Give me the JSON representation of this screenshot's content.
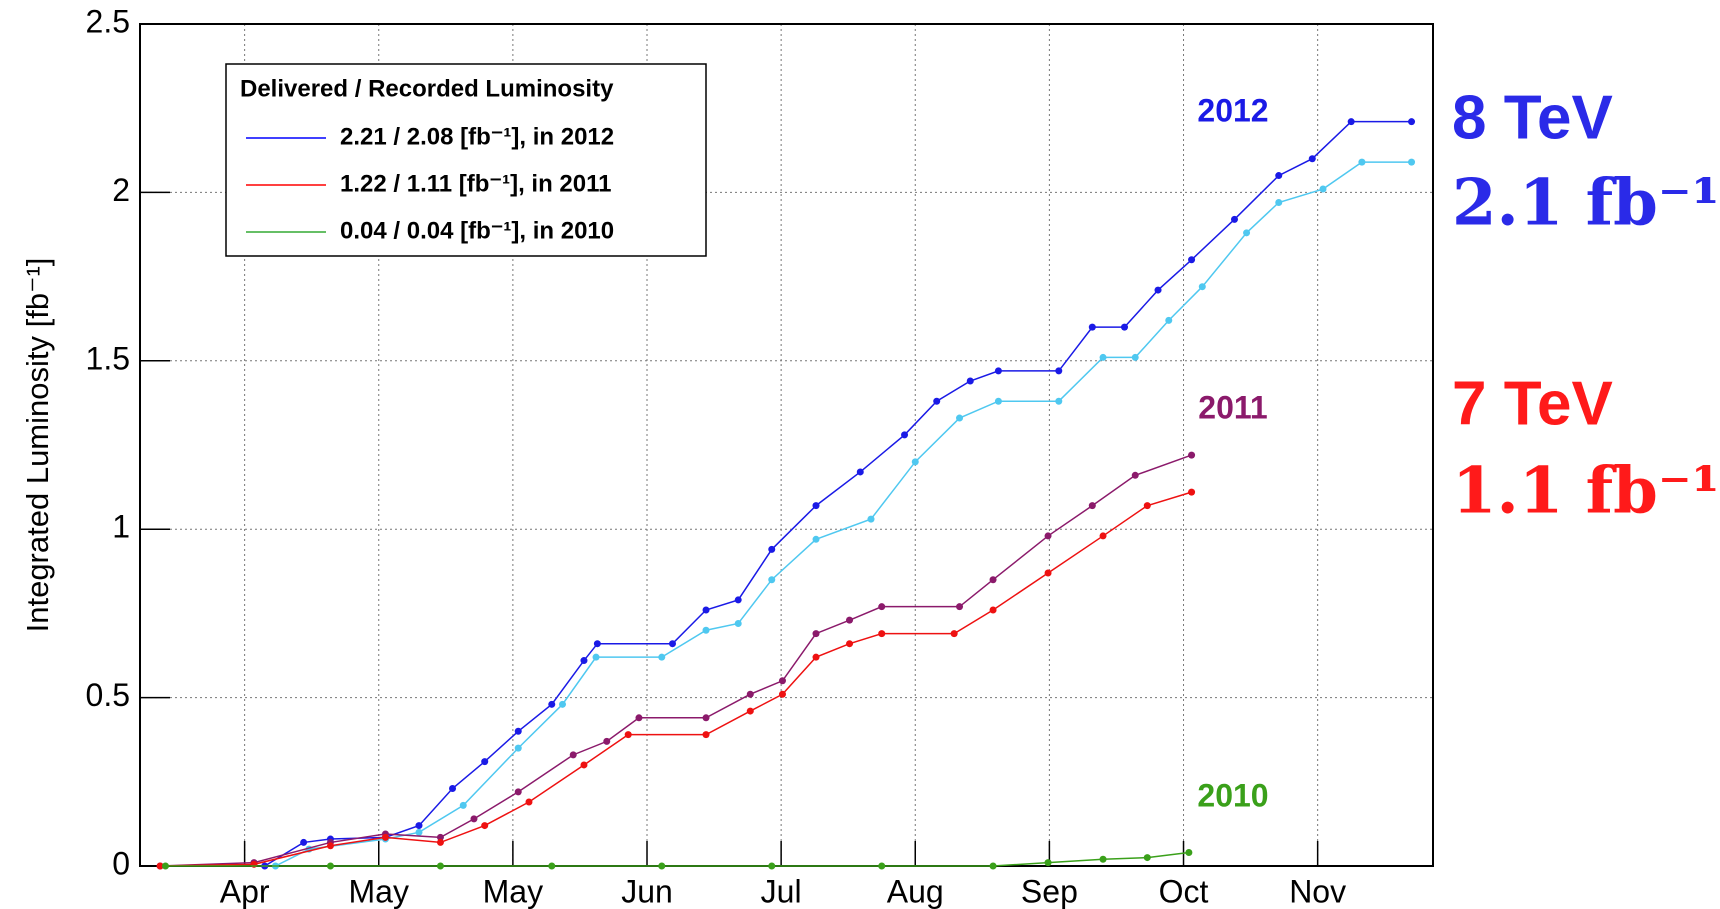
{
  "chart_data": {
    "type": "line",
    "ylabel": "Integrated Luminosity [fb⁻¹]",
    "xlim": [
      -0.78,
      8.86
    ],
    "xticks": [
      {
        "value": 0,
        "label": "Apr"
      },
      {
        "value": 1,
        "label": "May"
      },
      {
        "value": 2,
        "label": "May"
      },
      {
        "value": 3,
        "label": "Jun"
      },
      {
        "value": 4,
        "label": "Jul"
      },
      {
        "value": 5,
        "label": "Aug"
      },
      {
        "value": 6,
        "label": "Sep"
      },
      {
        "value": 7,
        "label": "Oct"
      },
      {
        "value": 8,
        "label": "Nov"
      }
    ],
    "ylim": [
      0,
      2.5
    ],
    "yticks": [
      0,
      0.5,
      1,
      1.5,
      2,
      2.5
    ],
    "grid": true,
    "legend": {
      "title": "Delivered / Recorded Luminosity",
      "position": "upper left",
      "entries": [
        {
          "label": "2.21 / 2.08 [fb⁻¹], in 2012",
          "color": "#0000ff"
        },
        {
          "label": "1.22 / 1.11 [fb⁻¹], in 2011",
          "color": "#ff0000"
        },
        {
          "label": "0.04 / 0.04 [fb⁻¹], in 2010",
          "color": "#33aa33"
        }
      ]
    },
    "series": [
      {
        "color": "#1a1ae6",
        "x": [
          0.15,
          0.44,
          0.64,
          1.05,
          1.3,
          1.55,
          1.79,
          2.04,
          2.29,
          2.53,
          2.63,
          3.19,
          3.44,
          3.68,
          3.93,
          4.26,
          4.59,
          4.92,
          5.16,
          5.41,
          5.62,
          6.07,
          6.32,
          6.56,
          6.81,
          7.06,
          7.38,
          7.71,
          7.96,
          8.25,
          8.7
        ],
        "values": [
          0,
          0.07,
          0.08,
          0.085,
          0.12,
          0.23,
          0.31,
          0.4,
          0.48,
          0.61,
          0.66,
          0.66,
          0.76,
          0.79,
          0.94,
          1.07,
          1.17,
          1.28,
          1.38,
          1.44,
          1.47,
          1.47,
          1.6,
          1.6,
          1.71,
          1.8,
          1.92,
          2.05,
          2.1,
          2.21,
          2.21
        ]
      },
      {
        "color": "#4fc8f0",
        "x": [
          0.23,
          0.48,
          1.05,
          1.3,
          1.63,
          2.04,
          2.37,
          2.62,
          3.11,
          3.44,
          3.68,
          3.93,
          4.26,
          4.67,
          5.0,
          5.33,
          5.62,
          6.07,
          6.4,
          6.64,
          6.89,
          7.14,
          7.47,
          7.71,
          8.04,
          8.33,
          8.7
        ],
        "values": [
          0,
          0.05,
          0.08,
          0.1,
          0.18,
          0.35,
          0.48,
          0.62,
          0.62,
          0.7,
          0.72,
          0.85,
          0.97,
          1.03,
          1.2,
          1.33,
          1.38,
          1.38,
          1.51,
          1.51,
          1.62,
          1.72,
          1.88,
          1.97,
          2.01,
          2.09,
          2.09
        ]
      },
      {
        "color": "#8b1a6b",
        "x": [
          -0.63,
          0.07,
          0.64,
          1.05,
          1.46,
          1.71,
          2.04,
          2.45,
          2.7,
          2.94,
          3.44,
          3.77,
          4.01,
          4.26,
          4.51,
          4.75,
          5.33,
          5.58,
          5.99,
          6.32,
          6.64,
          7.06
        ],
        "values": [
          0,
          0.01,
          0.07,
          0.095,
          0.085,
          0.14,
          0.22,
          0.33,
          0.37,
          0.44,
          0.44,
          0.51,
          0.55,
          0.69,
          0.73,
          0.77,
          0.77,
          0.85,
          0.98,
          1.07,
          1.16,
          1.22
        ]
      },
      {
        "color": "#ee1111",
        "x": [
          -0.63,
          0.07,
          0.64,
          1.05,
          1.46,
          1.79,
          2.12,
          2.53,
          2.86,
          3.44,
          3.77,
          4.01,
          4.26,
          4.51,
          4.75,
          5.29,
          5.58,
          5.99,
          6.4,
          6.73,
          7.06
        ],
        "values": [
          0,
          0.005,
          0.06,
          0.085,
          0.07,
          0.12,
          0.19,
          0.3,
          0.39,
          0.39,
          0.46,
          0.51,
          0.62,
          0.66,
          0.69,
          0.69,
          0.76,
          0.87,
          0.98,
          1.07,
          1.11
        ]
      },
      {
        "color": "#3aa01a",
        "x": [
          -0.59,
          0.64,
          1.46,
          2.29,
          3.11,
          3.93,
          4.75,
          5.58,
          5.99,
          6.4,
          6.73,
          7.04
        ],
        "values": [
          0,
          0,
          0,
          0,
          0,
          0,
          0,
          0,
          0.01,
          0.02,
          0.025,
          0.04
        ]
      }
    ],
    "annotations": [
      {
        "text": "2012",
        "color": "#1a1ae6"
      },
      {
        "text": "2011",
        "color": "#8b1a6b"
      },
      {
        "text": "2010",
        "color": "#3aa01a"
      },
      {
        "text": "8 TeV",
        "color": "#2a2ae8"
      },
      {
        "text": "2.1 fb⁻¹",
        "color": "#2a2ae8"
      },
      {
        "text": "7 TeV",
        "color": "#ff1a1a"
      },
      {
        "text": "1.1 fb⁻¹",
        "color": "#ff1a1a"
      }
    ]
  }
}
